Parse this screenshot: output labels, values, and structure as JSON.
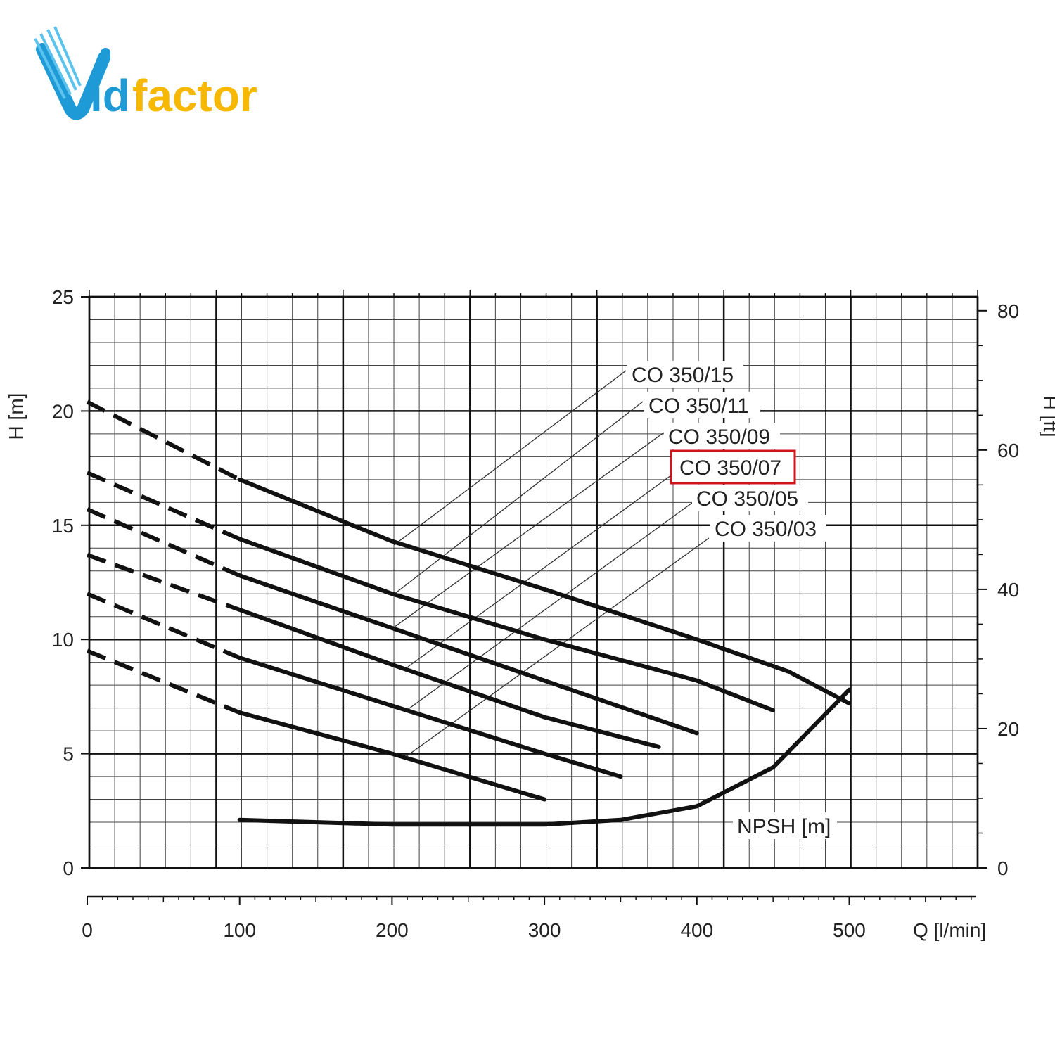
{
  "brand": {
    "logo_text_a": "id",
    "logo_text_b": "factor",
    "logo_colors": {
      "blue": "#1e9ad6",
      "yellow": "#f6b800"
    }
  },
  "chart_data": {
    "type": "line",
    "xlabel": "Q [l/min]",
    "ylabel": "H [m]",
    "y2label": "H [ft]",
    "xlim": [
      0,
      583
    ],
    "ylim": [
      0,
      25
    ],
    "y2lim": [
      0,
      82
    ],
    "x_ticks": [
      0,
      100,
      200,
      300,
      400,
      500
    ],
    "y_ticks": [
      0,
      5,
      10,
      15,
      20,
      25
    ],
    "y2_ticks": [
      0,
      20,
      40,
      60,
      80
    ],
    "grid": true,
    "highlight_color": "#d0161b",
    "series": [
      {
        "name": "CO 350/15",
        "label_index": 0,
        "x": [
          0,
          100,
          200,
          300,
          400,
          460,
          500
        ],
        "y": [
          20.4,
          17.0,
          14.3,
          12.2,
          10.0,
          8.6,
          7.2
        ],
        "dashed_until": 100
      },
      {
        "name": "CO 350/11",
        "label_index": 1,
        "x": [
          0,
          100,
          200,
          300,
          400,
          450
        ],
        "y": [
          17.3,
          14.4,
          12.0,
          10.0,
          8.2,
          6.9
        ],
        "dashed_until": 100
      },
      {
        "name": "CO 350/09",
        "label_index": 2,
        "x": [
          0,
          100,
          200,
          300,
          400
        ],
        "y": [
          15.7,
          12.8,
          10.5,
          8.2,
          5.9
        ],
        "dashed_until": 100
      },
      {
        "name": "CO 350/07",
        "label_index": 3,
        "x": [
          0,
          100,
          200,
          300,
          375
        ],
        "y": [
          13.7,
          11.3,
          8.9,
          6.6,
          5.3
        ],
        "dashed_until": 100,
        "highlight": true
      },
      {
        "name": "CO 350/05",
        "label_index": 4,
        "x": [
          0,
          100,
          200,
          300,
          350
        ],
        "y": [
          12.0,
          9.2,
          7.1,
          5.0,
          4.0
        ],
        "dashed_until": 100
      },
      {
        "name": "CO 350/03",
        "label_index": 5,
        "x": [
          0,
          100,
          200,
          300
        ],
        "y": [
          9.5,
          6.8,
          5.0,
          3.0
        ],
        "dashed_until": 100
      },
      {
        "name": "NPSH [m]",
        "label_index": 6,
        "x": [
          100,
          200,
          300,
          350,
          400,
          450,
          500
        ],
        "y": [
          2.1,
          1.9,
          1.9,
          2.1,
          2.7,
          4.4,
          7.8
        ]
      }
    ],
    "annotations": [
      "CO 350/15",
      "CO 350/11",
      "CO 350/09",
      "CO 350/07",
      "CO 350/05",
      "CO 350/03",
      "NPSH [m]"
    ]
  }
}
